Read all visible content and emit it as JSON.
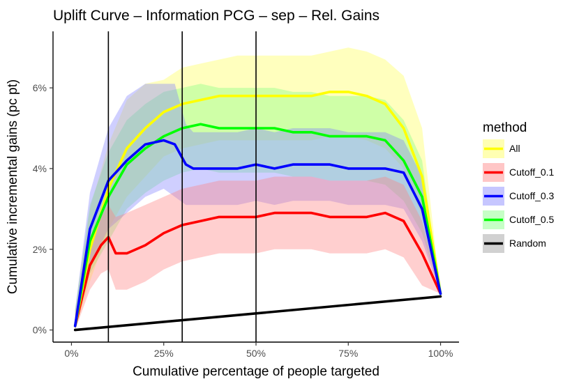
{
  "chart_data": {
    "type": "line",
    "title": "Uplift Curve –  Information PCG  –  sep  –  Rel. Gains",
    "xlabel": "Cumulative percentage of people targeted",
    "ylabel": "Cumulative incremental gains (pc pt)",
    "xlim": [
      -0.05,
      1.05
    ],
    "ylim": [
      -0.003,
      0.074
    ],
    "x_ticks": [
      0,
      0.25,
      0.5,
      0.75,
      1.0
    ],
    "x_tick_labels": [
      "0%",
      "25%",
      "50%",
      "75%",
      "100%"
    ],
    "y_ticks": [
      0,
      0.02,
      0.04,
      0.06
    ],
    "y_tick_labels": [
      "0%",
      "2%",
      "4%",
      "6%"
    ],
    "vertical_lines": [
      0.1,
      0.3,
      0.5
    ],
    "grid": false,
    "legend": {
      "title": "method",
      "position": "right",
      "entries": [
        "All",
        "Cutoff_0.1",
        "Cutoff_0.3",
        "Cutoff_0.5",
        "Random"
      ]
    },
    "series": [
      {
        "name": "All",
        "color": "#ffff00",
        "ribbon_color": "#ffff55",
        "x": [
          0.01,
          0.05,
          0.1,
          0.15,
          0.2,
          0.25,
          0.3,
          0.35,
          0.4,
          0.45,
          0.5,
          0.55,
          0.6,
          0.65,
          0.7,
          0.75,
          0.8,
          0.85,
          0.9,
          0.95,
          1.0
        ],
        "y": [
          0.001,
          0.02,
          0.035,
          0.045,
          0.05,
          0.054,
          0.056,
          0.057,
          0.058,
          0.058,
          0.058,
          0.058,
          0.058,
          0.058,
          0.059,
          0.059,
          0.058,
          0.056,
          0.05,
          0.038,
          0.009
        ],
        "upper": [
          0.005,
          0.03,
          0.046,
          0.057,
          0.061,
          0.062,
          0.065,
          0.066,
          0.067,
          0.068,
          0.068,
          0.068,
          0.068,
          0.068,
          0.069,
          0.07,
          0.069,
          0.067,
          0.063,
          0.05,
          0.009
        ],
        "lower": [
          0.0,
          0.012,
          0.025,
          0.033,
          0.038,
          0.043,
          0.045,
          0.046,
          0.047,
          0.047,
          0.047,
          0.047,
          0.047,
          0.047,
          0.048,
          0.048,
          0.047,
          0.045,
          0.04,
          0.028,
          0.009
        ]
      },
      {
        "name": "Cutoff_0.1",
        "color": "#ff0000",
        "ribbon_color": "#ff8080",
        "x": [
          0.01,
          0.05,
          0.08,
          0.1,
          0.12,
          0.15,
          0.2,
          0.25,
          0.3,
          0.35,
          0.4,
          0.45,
          0.5,
          0.55,
          0.6,
          0.65,
          0.7,
          0.75,
          0.8,
          0.85,
          0.9,
          0.95,
          1.0
        ],
        "y": [
          0.001,
          0.016,
          0.021,
          0.023,
          0.019,
          0.019,
          0.021,
          0.024,
          0.026,
          0.027,
          0.028,
          0.028,
          0.028,
          0.029,
          0.029,
          0.029,
          0.028,
          0.028,
          0.028,
          0.029,
          0.027,
          0.019,
          0.009
        ],
        "upper": [
          0.004,
          0.022,
          0.028,
          0.031,
          0.028,
          0.029,
          0.031,
          0.033,
          0.035,
          0.036,
          0.037,
          0.037,
          0.037,
          0.038,
          0.038,
          0.038,
          0.037,
          0.037,
          0.037,
          0.038,
          0.036,
          0.027,
          0.009
        ],
        "lower": [
          0.0,
          0.01,
          0.014,
          0.015,
          0.01,
          0.01,
          0.012,
          0.015,
          0.017,
          0.018,
          0.019,
          0.019,
          0.019,
          0.02,
          0.02,
          0.02,
          0.019,
          0.019,
          0.019,
          0.02,
          0.018,
          0.011,
          0.009
        ]
      },
      {
        "name": "Cutoff_0.3",
        "color": "#0000ff",
        "ribbon_color": "#8080ff",
        "x": [
          0.01,
          0.05,
          0.1,
          0.15,
          0.2,
          0.25,
          0.28,
          0.31,
          0.33,
          0.35,
          0.4,
          0.45,
          0.5,
          0.55,
          0.6,
          0.65,
          0.7,
          0.75,
          0.8,
          0.85,
          0.9,
          0.95,
          1.0
        ],
        "y": [
          0.001,
          0.025,
          0.037,
          0.042,
          0.046,
          0.047,
          0.046,
          0.041,
          0.04,
          0.04,
          0.04,
          0.04,
          0.041,
          0.04,
          0.041,
          0.041,
          0.041,
          0.04,
          0.04,
          0.04,
          0.039,
          0.03,
          0.009
        ],
        "upper": [
          0.005,
          0.034,
          0.05,
          0.058,
          0.061,
          0.061,
          0.061,
          0.051,
          0.049,
          0.049,
          0.049,
          0.049,
          0.05,
          0.049,
          0.05,
          0.05,
          0.05,
          0.049,
          0.049,
          0.049,
          0.047,
          0.038,
          0.009
        ],
        "lower": [
          0.0,
          0.016,
          0.025,
          0.029,
          0.033,
          0.035,
          0.033,
          0.031,
          0.031,
          0.031,
          0.031,
          0.031,
          0.032,
          0.031,
          0.032,
          0.032,
          0.032,
          0.031,
          0.031,
          0.031,
          0.03,
          0.022,
          0.009
        ]
      },
      {
        "name": "Cutoff_0.5",
        "color": "#00ff00",
        "ribbon_color": "#80ff80",
        "x": [
          0.01,
          0.05,
          0.1,
          0.15,
          0.2,
          0.25,
          0.3,
          0.35,
          0.4,
          0.45,
          0.5,
          0.55,
          0.6,
          0.65,
          0.7,
          0.75,
          0.8,
          0.85,
          0.9,
          0.95,
          1.0
        ],
        "y": [
          0.001,
          0.022,
          0.033,
          0.041,
          0.045,
          0.048,
          0.05,
          0.051,
          0.05,
          0.05,
          0.05,
          0.05,
          0.049,
          0.049,
          0.048,
          0.048,
          0.048,
          0.047,
          0.042,
          0.033,
          0.009
        ],
        "upper": [
          0.005,
          0.031,
          0.044,
          0.052,
          0.056,
          0.059,
          0.06,
          0.061,
          0.06,
          0.06,
          0.06,
          0.06,
          0.059,
          0.059,
          0.058,
          0.058,
          0.058,
          0.057,
          0.052,
          0.042,
          0.009
        ],
        "lower": [
          0.0,
          0.014,
          0.022,
          0.03,
          0.034,
          0.037,
          0.039,
          0.04,
          0.039,
          0.039,
          0.039,
          0.039,
          0.038,
          0.038,
          0.037,
          0.037,
          0.037,
          0.036,
          0.032,
          0.024,
          0.009
        ]
      },
      {
        "name": "Random",
        "color": "#000000",
        "ribbon_color": "#999999",
        "x": [
          0.01,
          1.0
        ],
        "y": [
          0.0,
          0.0083
        ]
      }
    ]
  }
}
